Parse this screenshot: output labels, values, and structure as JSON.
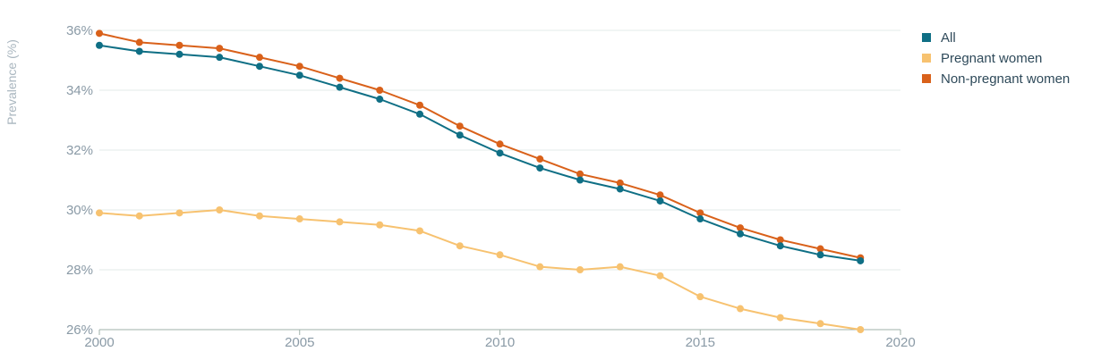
{
  "chart_data": {
    "type": "line",
    "title": "",
    "xlabel": "",
    "ylabel": "Prevalence (%)",
    "x": [
      2000,
      2001,
      2002,
      2003,
      2004,
      2005,
      2006,
      2007,
      2008,
      2009,
      2010,
      2011,
      2012,
      2013,
      2014,
      2015,
      2016,
      2017,
      2018,
      2019
    ],
    "xlim": [
      2000,
      2020
    ],
    "ylim": [
      26,
      36
    ],
    "x_ticks": [
      2000,
      2005,
      2010,
      2015,
      2020
    ],
    "y_ticks": [
      26,
      28,
      30,
      32,
      34,
      36
    ],
    "x_tick_labels": [
      "2000",
      "2005",
      "2010",
      "2015",
      "2020"
    ],
    "y_tick_labels": [
      "26%",
      "28%",
      "30%",
      "32%",
      "34%",
      "36%"
    ],
    "grid": "horizontal",
    "legend_position": "top-right",
    "series": [
      {
        "name": "All",
        "color": "#0f6f85",
        "values": [
          35.5,
          35.3,
          35.2,
          35.1,
          34.8,
          34.5,
          34.1,
          33.7,
          33.2,
          32.5,
          31.9,
          31.4,
          31.0,
          30.7,
          30.3,
          29.7,
          29.2,
          28.8,
          28.5,
          28.3
        ]
      },
      {
        "name": "Pregnant women",
        "color": "#f7c270",
        "values": [
          29.9,
          29.8,
          29.9,
          30.0,
          29.8,
          29.7,
          29.6,
          29.5,
          29.3,
          28.8,
          28.5,
          28.1,
          28.0,
          28.1,
          27.8,
          27.1,
          26.7,
          26.4,
          26.2,
          26.0
        ]
      },
      {
        "name": "Non-pregnant women",
        "color": "#d9611a",
        "values": [
          35.9,
          35.6,
          35.5,
          35.4,
          35.1,
          34.8,
          34.4,
          34.0,
          33.5,
          32.8,
          32.2,
          31.7,
          31.2,
          30.9,
          30.5,
          29.9,
          29.4,
          29.0,
          28.7,
          28.4
        ]
      }
    ],
    "draw_order": [
      1,
      2,
      0
    ]
  }
}
